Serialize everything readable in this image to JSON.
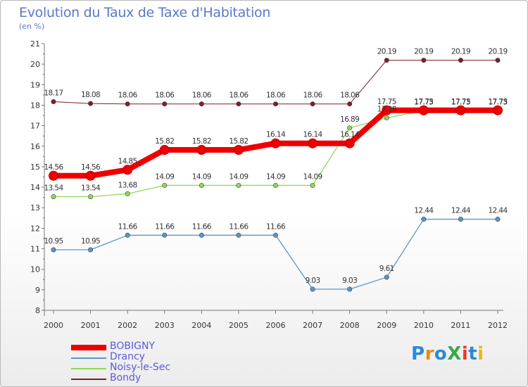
{
  "title": "Evolution du Taux de Taxe d'Habitation",
  "subtitle": "(en %)",
  "logo_text": "ProXiti",
  "chart_data": {
    "type": "line",
    "title": "Evolution du Taux de Taxe d'Habitation",
    "ylabel": "(en %)",
    "x": [
      "2000",
      "2001",
      "2002",
      "2003",
      "2004",
      "2005",
      "2006",
      "2007",
      "2008",
      "2009",
      "2010",
      "2011",
      "2012"
    ],
    "ylim": [
      8,
      21
    ],
    "yticks": [
      8,
      9,
      10,
      11,
      12,
      13,
      14,
      15,
      16,
      17,
      18,
      19,
      20,
      21
    ],
    "grid": false,
    "legend_position": "bottom-left",
    "series": [
      {
        "name": "Bondy",
        "color": "#7a1f2b",
        "width": 1,
        "values": [
          18.17,
          18.08,
          18.06,
          18.06,
          18.06,
          18.06,
          18.06,
          18.06,
          18.06,
          20.19,
          20.19,
          20.19,
          20.19
        ],
        "labels": [
          "18.17",
          "18.08",
          "18.06",
          "18.06",
          "18.06",
          "18.06",
          "18.06",
          "18.06",
          "18.06",
          "20.19",
          "20.19",
          "20.19",
          "20.19"
        ]
      },
      {
        "name": "Noisy-le-Sec",
        "color": "#8ed85a",
        "width": 1.3,
        "values": [
          13.54,
          13.54,
          13.68,
          14.09,
          14.09,
          14.09,
          14.09,
          14.09,
          16.89,
          17.38,
          17.73,
          17.73,
          17.73
        ],
        "labels": [
          "13.54",
          "13.54",
          "13.68",
          "14.09",
          "14.09",
          "14.09",
          "14.09",
          "14.09",
          "16.89",
          "17.38",
          "17.73",
          "17.73",
          "17.73"
        ]
      },
      {
        "name": "Drancy",
        "color": "#5a96c8",
        "width": 1.3,
        "values": [
          10.95,
          10.95,
          11.66,
          11.66,
          11.66,
          11.66,
          11.66,
          9.03,
          9.03,
          9.61,
          12.44,
          12.44,
          12.44
        ],
        "labels": [
          "10.95",
          "10.95",
          "11.66",
          "11.66",
          "11.66",
          "11.66",
          "11.66",
          "9.03",
          "9.03",
          "9.61",
          "12.44",
          "12.44",
          "12.44"
        ]
      },
      {
        "name": "BOBIGNY",
        "color": "#ee0000",
        "width": 8,
        "values": [
          14.56,
          14.56,
          14.85,
          15.82,
          15.82,
          15.82,
          16.14,
          16.14,
          16.14,
          17.75,
          17.75,
          17.75,
          17.75
        ],
        "labels": [
          "14.56",
          "14.56",
          "14.85",
          "15.82",
          "15.82",
          "15.82",
          "16.14",
          "16.14",
          "16.14",
          "17.75",
          "17.75",
          "17.75",
          "17.75"
        ]
      }
    ],
    "legend_order": [
      "BOBIGNY",
      "Drancy",
      "Noisy-le-Sec",
      "Bondy"
    ]
  }
}
